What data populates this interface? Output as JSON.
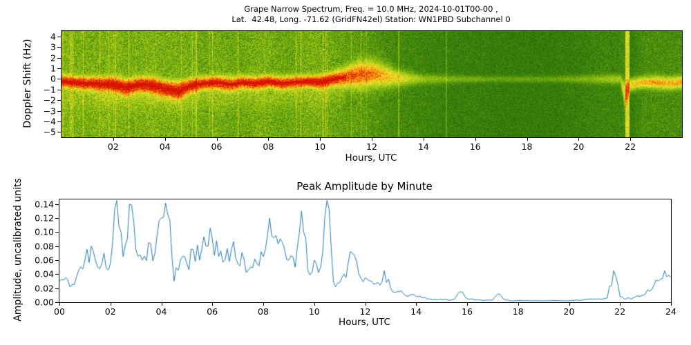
{
  "figure": {
    "background": "#ffffff"
  },
  "spectrogram": {
    "title_line1": "Grape Narrow Spectrum, Freq. = 10.0 MHz, 2024-10-01T00-00 ,",
    "title_line2": "Lat.  42.48, Long. -71.62 (GridFN42el) Station: WN1PBD Subchannel 0",
    "xlabel": "Hours, UTC",
    "ylabel": "Doppler Shift (Hz)",
    "xtick_labels": [
      "02",
      "04",
      "06",
      "08",
      "10",
      "12",
      "14",
      "16",
      "18",
      "20",
      "22"
    ],
    "xtick_hours": [
      2,
      4,
      6,
      8,
      10,
      12,
      14,
      16,
      18,
      20,
      22
    ],
    "ytick_labels": [
      "4",
      "3",
      "2",
      "1",
      "0",
      "−1",
      "−2",
      "−3",
      "−4",
      "−5"
    ],
    "ytick_values": [
      4,
      3,
      2,
      1,
      0,
      -1,
      -2,
      -3,
      -4,
      -5
    ]
  },
  "amplitude": {
    "title": "Peak Amplitude by Minute",
    "xlabel": "Hours, UTC",
    "ylabel": "Amplitude, uncalibrated units",
    "xtick_labels": [
      "00",
      "02",
      "04",
      "06",
      "08",
      "10",
      "12",
      "14",
      "16",
      "18",
      "20",
      "22",
      "24"
    ],
    "xtick_hours": [
      0,
      2,
      4,
      6,
      8,
      10,
      12,
      14,
      16,
      18,
      20,
      22,
      24
    ],
    "ytick_labels": [
      "0.00",
      "0.02",
      "0.04",
      "0.06",
      "0.08",
      "0.10",
      "0.12",
      "0.14"
    ],
    "ytick_values": [
      0,
      0.02,
      0.04,
      0.06,
      0.08,
      0.1,
      0.12,
      0.14
    ],
    "line_color": "#1f77b4"
  },
  "chart_data": [
    {
      "type": "heatmap",
      "title": "Grape Narrow Spectrum, Freq. = 10.0 MHz, 2024-10-01T00-00 , Lat. 42.48, Long. -71.62 (GridFN42el) Station: WN1PBD Subchannel 0",
      "xlabel": "Hours, UTC",
      "ylabel": "Doppler Shift (Hz)",
      "xlim": [
        0,
        24
      ],
      "ylim": [
        -5.5,
        4.5
      ],
      "xticks": [
        2,
        4,
        6,
        8,
        10,
        12,
        14,
        16,
        18,
        20,
        22
      ],
      "yticks": [
        4,
        3,
        2,
        1,
        0,
        -1,
        -2,
        -3,
        -4,
        -5
      ],
      "colormap": "green (low) -> yellow -> orange -> red (high)",
      "trace_hours": [
        0,
        1,
        2,
        2.5,
        3,
        3.5,
        4,
        4.5,
        5,
        5.5,
        6,
        6.5,
        7,
        7.5,
        8,
        8.5,
        9,
        9.5,
        10,
        10.5,
        11,
        11.5,
        12,
        12.5,
        13,
        14,
        15,
        16,
        17,
        18,
        19,
        20,
        21,
        21.6,
        21.8,
        22,
        22.5,
        23,
        23.5,
        24
      ],
      "trace_center_hz": [
        -0.2,
        -0.4,
        -0.5,
        -0.8,
        -0.5,
        -0.6,
        -0.9,
        -1.1,
        -0.6,
        -0.4,
        -0.3,
        -0.5,
        -0.3,
        -0.4,
        -0.2,
        -0.4,
        -0.3,
        -0.2,
        -0.3,
        0.0,
        0.2,
        0.4,
        0.5,
        0.3,
        0.1,
        0.0,
        0.0,
        0.0,
        0.0,
        0.0,
        0.0,
        0.0,
        0.0,
        0.0,
        -1.5,
        -0.5,
        -0.3,
        -0.3,
        -0.4,
        -0.3
      ],
      "trace_intensity": [
        0.9,
        0.95,
        1.0,
        1.0,
        1.0,
        1.0,
        1.0,
        1.0,
        0.95,
        0.9,
        0.95,
        0.9,
        0.9,
        0.95,
        1.0,
        0.95,
        0.9,
        0.95,
        1.0,
        0.9,
        0.8,
        0.75,
        0.7,
        0.6,
        0.45,
        0.25,
        0.2,
        0.18,
        0.15,
        0.15,
        0.15,
        0.18,
        0.25,
        0.3,
        0.5,
        0.55,
        0.6,
        0.65,
        0.6,
        0.65
      ],
      "trace_width_hz": [
        0.35,
        0.4,
        0.45,
        0.5,
        0.45,
        0.5,
        0.5,
        0.55,
        0.45,
        0.4,
        0.4,
        0.45,
        0.4,
        0.4,
        0.35,
        0.4,
        0.4,
        0.35,
        0.4,
        0.45,
        0.6,
        0.8,
        0.8,
        0.7,
        0.5,
        0.3,
        0.25,
        0.2,
        0.2,
        0.2,
        0.2,
        0.25,
        0.3,
        0.3,
        0.8,
        0.4,
        0.35,
        0.4,
        0.4,
        0.4
      ],
      "background_level": [
        0.55,
        0.5,
        0.55,
        0.5,
        0.5,
        0.55,
        0.5,
        0.5,
        0.5,
        0.45,
        0.5,
        0.45,
        0.45,
        0.5,
        0.5,
        0.45,
        0.45,
        0.5,
        0.5,
        0.45,
        0.4,
        0.4,
        0.35,
        0.3,
        0.28,
        0.25,
        0.22,
        0.22,
        0.2,
        0.2,
        0.2,
        0.22,
        0.25,
        0.25,
        0.3,
        0.2,
        0.3,
        0.3,
        0.3,
        0.3
      ],
      "vertical_features": [
        {
          "from_hour": 21.8,
          "to_hour": 21.95,
          "boost": 0.55
        },
        {
          "from_hour": 13.0,
          "to_hour": 13.05,
          "boost": 0.2
        },
        {
          "from_hour": 14.85,
          "to_hour": 14.9,
          "boost": 0.15
        }
      ]
    },
    {
      "type": "line",
      "title": "Peak Amplitude by Minute",
      "xlabel": "Hours, UTC",
      "ylabel": "Amplitude, uncalibrated units",
      "xlim": [
        0,
        24
      ],
      "ylim": [
        0,
        0.1465
      ],
      "xticks": [
        0,
        2,
        4,
        6,
        8,
        10,
        12,
        14,
        16,
        18,
        20,
        22,
        24
      ],
      "yticks": [
        0,
        0.02,
        0.04,
        0.06,
        0.08,
        0.1,
        0.12,
        0.14
      ],
      "line_color": "#1f77b4",
      "x_start": 0,
      "x_step": 0.25,
      "values": [
        0.03,
        0.035,
        0.025,
        0.045,
        0.06,
        0.08,
        0.05,
        0.07,
        0.055,
        0.145,
        0.065,
        0.14,
        0.075,
        0.06,
        0.085,
        0.07,
        0.12,
        0.125,
        0.03,
        0.06,
        0.055,
        0.075,
        0.06,
        0.08,
        0.09,
        0.065,
        0.06,
        0.075,
        0.055,
        0.06,
        0.05,
        0.055,
        0.065,
        0.12,
        0.095,
        0.085,
        0.06,
        0.05,
        0.13,
        0.045,
        0.06,
        0.05,
        0.145,
        0.03,
        0.028,
        0.035,
        0.07,
        0.04,
        0.035,
        0.03,
        0.028,
        0.045,
        0.02,
        0.015,
        0.012,
        0.01,
        0.008,
        0.006,
        0.005,
        0.004,
        0.004,
        0.003,
        0.004,
        0.015,
        0.005,
        0.004,
        0.003,
        0.003,
        0.003,
        0.012,
        0.003,
        0.002,
        0.002,
        0.002,
        0.002,
        0.002,
        0.002,
        0.002,
        0.002,
        0.002,
        0.002,
        0.003,
        0.003,
        0.004,
        0.005,
        0.004,
        0.006,
        0.045,
        0.008,
        0.005,
        0.006,
        0.008,
        0.012,
        0.018,
        0.03,
        0.045,
        0.035
      ]
    }
  ]
}
